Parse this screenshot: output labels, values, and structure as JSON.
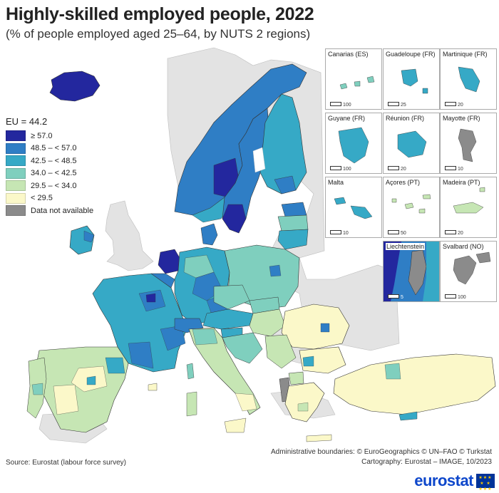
{
  "title": "Highly-skilled employed people, 2022",
  "subtitle": "(% of people employed aged 25–64, by NUTS 2 regions)",
  "legend": {
    "eu_label": "EU = 44.2",
    "items": [
      {
        "label": "≥ 57.0",
        "color": "#23279e"
      },
      {
        "label": "48.5 – < 57.0",
        "color": "#2f7ec5"
      },
      {
        "label": "42.5 – < 48.5",
        "color": "#36a9c6"
      },
      {
        "label": "34.0 – < 42.5",
        "color": "#7fcfbe"
      },
      {
        "label": "29.5 – < 34.0",
        "color": "#c6e6b4"
      },
      {
        "label": "< 29.5",
        "color": "#fbf8c9"
      },
      {
        "label": "Data not available",
        "color": "#8b8b8b"
      }
    ]
  },
  "insets": [
    {
      "name": "Canarias (ES)",
      "scale": "100"
    },
    {
      "name": "Guadeloupe (FR)",
      "scale": "25"
    },
    {
      "name": "Martinique (FR)",
      "scale": "20"
    },
    {
      "name": "Guyane (FR)",
      "scale": "100"
    },
    {
      "name": "Réunion (FR)",
      "scale": "20"
    },
    {
      "name": "Mayotte (FR)",
      "scale": "10"
    },
    {
      "name": "Malta",
      "scale": "10"
    },
    {
      "name": "Açores (PT)",
      "scale": "50"
    },
    {
      "name": "Madeira (PT)",
      "scale": "20"
    },
    {
      "name": "Liechtenstein",
      "scale": "5"
    },
    {
      "name": "Svalbard (NO)",
      "scale": "100"
    }
  ],
  "footer": {
    "source": "Source: Eurostat (labour force survey)",
    "boundaries": "Administrative boundaries: © EuroGeographics © UN–FAO © Turkstat",
    "cartography": "Cartography: Eurostat – IMAGE, 10/2023"
  },
  "logo": {
    "text": "eurostat"
  },
  "colors": {
    "sea": "#ffffff",
    "non_eu": "#e3e3e3",
    "border": "#333333"
  }
}
